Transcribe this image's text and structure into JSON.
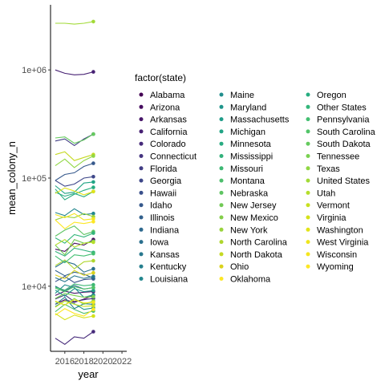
{
  "chart_data": {
    "type": "line",
    "xlabel": "year",
    "ylabel": "mean_colony_n",
    "y_scale": "log10",
    "ylim": [
      2500,
      4000000
    ],
    "xlim": [
      2014.5,
      2022.5
    ],
    "x_ticks": [
      2016,
      2018,
      2020,
      2022
    ],
    "y_ticks": [
      {
        "value": 10000,
        "label": "1e+04"
      },
      {
        "value": 100000,
        "label": "1e+05"
      },
      {
        "value": 1000000,
        "label": "1e+06"
      }
    ],
    "grid": false,
    "legend": {
      "title": "factor(state)",
      "placement": "right",
      "columns": 3
    },
    "palette": "viridis",
    "x": [
      2015,
      2016,
      2017,
      2018,
      2019
    ],
    "series": [
      {
        "name": "Alabama",
        "color": "#440154",
        "values": [
          6800,
          7500,
          7100,
          7600,
          8200
        ]
      },
      {
        "name": "Arizona",
        "color": "#460C5F",
        "values": [
          22000,
          21000,
          25000,
          24000,
          27000
        ]
      },
      {
        "name": "Arkansas",
        "color": "#471669",
        "values": [
          8200,
          9000,
          8600,
          8800,
          8900
        ]
      },
      {
        "name": "California",
        "color": "#472173",
        "values": [
          1000000,
          930000,
          900000,
          910000,
          960000
        ]
      },
      {
        "name": "Colorado",
        "color": "#462A7A",
        "values": [
          3300,
          2900,
          3400,
          3300,
          3800
        ]
      },
      {
        "name": "Connecticut",
        "color": "#453480",
        "values": [
          7600,
          8300,
          7200,
          7500,
          7700
        ]
      },
      {
        "name": "Florida",
        "color": "#423E85",
        "values": [
          220000,
          230000,
          200000,
          230000,
          255000
        ]
      },
      {
        "name": "Georgia",
        "color": "#3E4789",
        "values": [
          95000,
          84000,
          88000,
          100000,
          103000
        ]
      },
      {
        "name": "Hawaii",
        "color": "#3A508B",
        "values": [
          11000,
          12300,
          10800,
          11500,
          11700
        ]
      },
      {
        "name": "Idaho",
        "color": "#36598C",
        "values": [
          95000,
          108000,
          112000,
          128000,
          137000
        ]
      },
      {
        "name": "Illinois",
        "color": "#32618D",
        "values": [
          14000,
          12500,
          13500,
          13000,
          11800
        ]
      },
      {
        "name": "Indiana",
        "color": "#2E698E",
        "values": [
          10000,
          9000,
          10200,
          9400,
          9700
        ]
      },
      {
        "name": "Iowa",
        "color": "#2B708E",
        "values": [
          15000,
          17000,
          16000,
          13500,
          14500
        ]
      },
      {
        "name": "Kansas",
        "color": "#29788E",
        "values": [
          12000,
          11000,
          12500,
          11800,
          12300
        ]
      },
      {
        "name": "Kentucky",
        "color": "#267F8E",
        "values": [
          6800,
          7900,
          6200,
          6900,
          6800
        ]
      },
      {
        "name": "Louisiana",
        "color": "#23878E",
        "values": [
          48000,
          45000,
          52000,
          46000,
          47000
        ]
      },
      {
        "name": "Maine",
        "color": "#218E8D",
        "values": [
          8600,
          10300,
          9700,
          7900,
          8300
        ]
      },
      {
        "name": "Maryland",
        "color": "#1F958B",
        "values": [
          6500,
          7300,
          6900,
          6100,
          6300
        ]
      },
      {
        "name": "Massachusetts",
        "color": "#1F9C89",
        "values": [
          9200,
          8100,
          9500,
          8900,
          9100
        ]
      },
      {
        "name": "Michigan",
        "color": "#21A485",
        "values": [
          85000,
          72000,
          74000,
          90000,
          92000
        ]
      },
      {
        "name": "Minnesota",
        "color": "#28AB81",
        "values": [
          74000,
          68000,
          72000,
          67000,
          75000
        ]
      },
      {
        "name": "Mississippi",
        "color": "#32B17B",
        "values": [
          21000,
          19000,
          22500,
          21500,
          20500
        ]
      },
      {
        "name": "Missouri",
        "color": "#3EB874",
        "values": [
          9800,
          9200,
          10500,
          10100,
          10300
        ]
      },
      {
        "name": "Montana",
        "color": "#4DBE6C",
        "values": [
          5800,
          6800,
          6100,
          5600,
          5900
        ]
      },
      {
        "name": "Nebraska",
        "color": "#5EC462",
        "values": [
          29000,
          33000,
          36000,
          30000,
          32000
        ]
      },
      {
        "name": "New Jersey",
        "color": "#71C956",
        "values": [
          24000,
          19500,
          27000,
          25000,
          26000
        ]
      },
      {
        "name": "New Mexico",
        "color": "#84CE4A",
        "values": [
          7200,
          6700,
          7700,
          6800,
          7300
        ]
      },
      {
        "name": "New York",
        "color": "#99D33C",
        "values": [
          41000,
          44000,
          43000,
          47000,
          44000
        ]
      },
      {
        "name": "North Carolina",
        "color": "#AFD62E",
        "values": [
          15500,
          17500,
          14500,
          16800,
          17200
        ]
      },
      {
        "name": "North Dakota",
        "color": "#C5D922",
        "values": [
          165000,
          175000,
          145000,
          155000,
          165000
        ]
      },
      {
        "name": "Ohio",
        "color": "#DAD21C",
        "values": [
          12700,
          11700,
          14000,
          12600,
          13300
        ]
      },
      {
        "name": "Oklahoma",
        "color": "#FDE725",
        "values": [
          5400,
          6200,
          5600,
          5300,
          6100
        ]
      },
      {
        "name": "Oregon",
        "color": "#27AD81",
        "values": [
          79000,
          63000,
          71000,
          77000,
          82000
        ]
      },
      {
        "name": "Other States",
        "color": "#33B67A",
        "values": [
          28000,
          25000,
          30000,
          28500,
          31000
        ]
      },
      {
        "name": "Pennsylvania",
        "color": "#43BF71",
        "values": [
          19000,
          16500,
          19500,
          19000,
          20000
        ]
      },
      {
        "name": "South Carolina",
        "color": "#52C569",
        "values": [
          9600,
          8900,
          9900,
          9400,
          9700
        ]
      },
      {
        "name": "South Dakota",
        "color": "#65CB5E",
        "values": [
          235000,
          240000,
          210000,
          225000,
          255000
        ]
      },
      {
        "name": "Tennessee",
        "color": "#7AD151",
        "values": [
          7700,
          8600,
          8200,
          7900,
          8000
        ]
      },
      {
        "name": "Texas",
        "color": "#90D743",
        "values": [
          130000,
          150000,
          125000,
          145000,
          160000
        ]
      },
      {
        "name": "United States",
        "color": "#A2DA37",
        "values": [
          2700000,
          2700000,
          2650000,
          2700000,
          2800000
        ]
      },
      {
        "name": "Utah",
        "color": "#B5DE2B",
        "values": [
          24000,
          27000,
          23000,
          25000,
          25500
        ]
      },
      {
        "name": "Vermont",
        "color": "#C8E020",
        "values": [
          6400,
          7300,
          6800,
          6500,
          6600
        ]
      },
      {
        "name": "Virginia",
        "color": "#D5E21A",
        "values": [
          5600,
          4900,
          5400,
          5100,
          5300
        ]
      },
      {
        "name": "Washington",
        "color": "#E2E418",
        "values": [
          72000,
          81000,
          76000,
          70000,
          75000
        ]
      },
      {
        "name": "West Virginia",
        "color": "#EFE51C",
        "values": [
          7300,
          6700,
          7500,
          7000,
          7100
        ]
      },
      {
        "name": "Wisconsin",
        "color": "#F5E61E",
        "values": [
          46000,
          43000,
          47000,
          41000,
          42000
        ]
      },
      {
        "name": "Wyoming",
        "color": "#FDE725",
        "values": [
          41000,
          34000,
          39000,
          38000,
          39500
        ]
      }
    ]
  }
}
